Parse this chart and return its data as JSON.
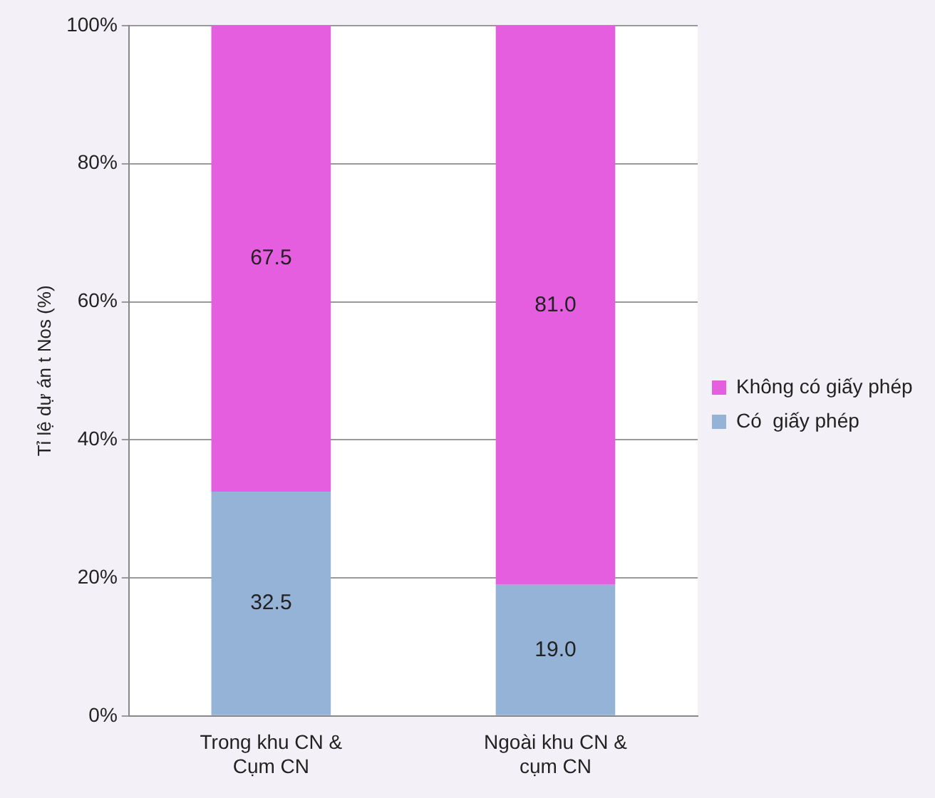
{
  "chart_data": {
    "type": "bar",
    "stacked": true,
    "ylabel": "Tỉ lệ dự án t Nos (%)",
    "categories": [
      "Trong khu CN & Cụm CN",
      "Ngoài khu CN & cụm CN"
    ],
    "series": [
      {
        "name": "Có  giấy phép",
        "color": "#95b3d7",
        "values": [
          32.5,
          19.0
        ],
        "value_labels": [
          "32.5",
          "19.0"
        ]
      },
      {
        "name": "Không có giấy phép",
        "color": "#e65ee0",
        "values": [
          67.5,
          81.0
        ],
        "value_labels": [
          "67.5",
          "81.0"
        ]
      }
    ],
    "ylim": [
      0,
      100
    ],
    "yticks": [
      {
        "value": 0,
        "label": "0%"
      },
      {
        "value": 20,
        "label": "20%"
      },
      {
        "value": 40,
        "label": "40%"
      },
      {
        "value": 60,
        "label": "60%"
      },
      {
        "value": 80,
        "label": "80%"
      },
      {
        "value": 100,
        "label": "100%"
      }
    ],
    "grid": "y",
    "legend": "right"
  }
}
